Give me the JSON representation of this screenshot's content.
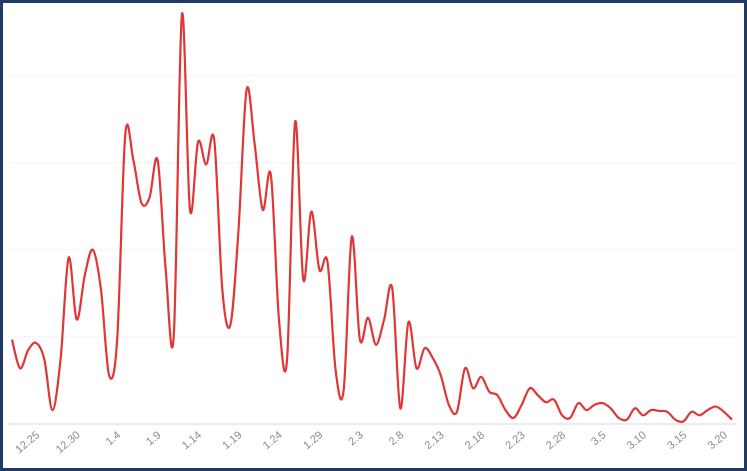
{
  "chart_data": {
    "type": "line",
    "categories": [
      null,
      null,
      null,
      "12.25",
      null,
      null,
      null,
      null,
      "12.30",
      null,
      null,
      null,
      null,
      "1.4",
      null,
      null,
      null,
      null,
      "1.9",
      null,
      null,
      null,
      null,
      "1.14",
      null,
      null,
      null,
      null,
      "1.19",
      null,
      null,
      null,
      null,
      "1.24",
      null,
      null,
      null,
      null,
      "1.29",
      null,
      null,
      null,
      null,
      "2.3",
      null,
      null,
      null,
      null,
      "2.8",
      null,
      null,
      null,
      null,
      "2.13",
      null,
      null,
      null,
      null,
      "2.18",
      null,
      null,
      null,
      null,
      "2.23",
      null,
      null,
      null,
      null,
      "2.28",
      null,
      null,
      null,
      null,
      "3.5",
      null,
      null,
      null,
      null,
      "3.10",
      null,
      null,
      null,
      null,
      "3.15",
      null,
      null,
      null,
      null,
      "3.20",
      null
    ],
    "values": [
      97,
      64,
      85,
      93,
      74,
      16,
      74,
      191,
      120,
      171,
      200,
      154,
      56,
      97,
      332,
      303,
      254,
      260,
      303,
      177,
      102,
      470,
      246,
      324,
      298,
      326,
      154,
      114,
      223,
      384,
      321,
      246,
      286,
      120,
      74,
      347,
      166,
      244,
      177,
      186,
      62,
      39,
      215,
      97,
      122,
      91,
      120,
      156,
      18,
      117,
      64,
      87,
      76,
      56,
      22,
      14,
      64,
      41,
      54,
      37,
      33,
      16,
      7,
      22,
      41,
      33,
      25,
      28,
      10,
      7,
      24,
      16,
      22,
      24,
      18,
      7,
      5,
      18,
      10,
      16,
      15,
      14,
      5,
      3,
      14,
      10,
      16,
      20,
      14,
      5
    ],
    "color": "#e03636",
    "ylim": [
      0,
      480
    ],
    "yticks": [
      0,
      100,
      200,
      300,
      400
    ],
    "grid": true
  }
}
